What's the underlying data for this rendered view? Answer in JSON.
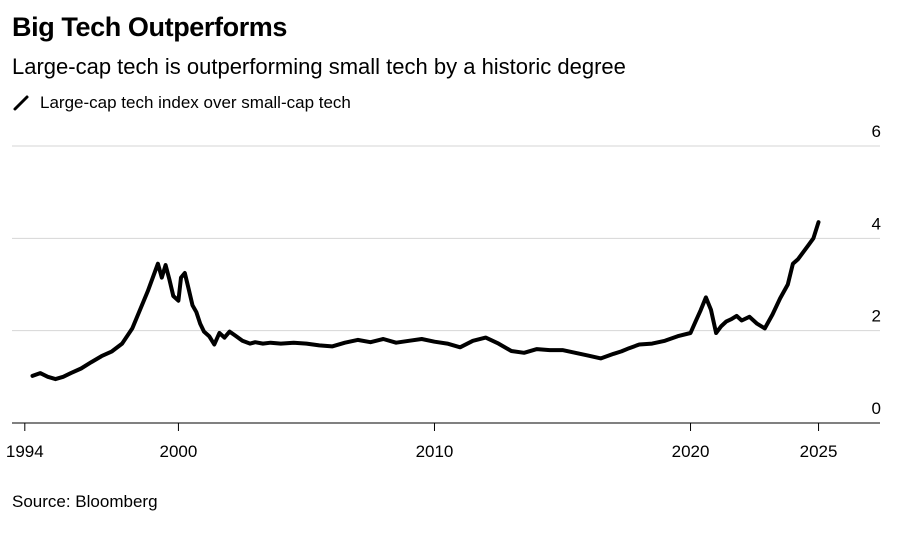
{
  "title": "Big Tech Outperforms",
  "subtitle": "Large-cap tech is outperforming small tech by a historic degree",
  "source": "Source: Bloomberg",
  "colors": {
    "line": "#000000",
    "grid": "#d6d6d6",
    "axis": "#000000"
  },
  "chart_data": {
    "type": "line",
    "title": "Big Tech Outperforms",
    "subtitle": "Large-cap tech is outperforming small tech by a historic degree",
    "xlabel": "",
    "ylabel": "",
    "xlim": [
      1993.5,
      2027.4
    ],
    "ylim": [
      0,
      6
    ],
    "grid": true,
    "legend_position": "top-left",
    "x_ticks": [
      1994,
      2000,
      2010,
      2020,
      2025
    ],
    "x_tick_labels": [
      "1994",
      "2000",
      "2010",
      "2020",
      "2025"
    ],
    "y_ticks": [
      0,
      2,
      4,
      6
    ],
    "y_tick_labels": [
      "0",
      "2",
      "4",
      "6"
    ],
    "series": [
      {
        "name": "Large-cap tech index over small-cap tech",
        "x": [
          1994.3,
          1994.6,
          1994.9,
          1995.2,
          1995.5,
          1995.8,
          1996.2,
          1996.6,
          1997.0,
          1997.4,
          1997.8,
          1998.2,
          1998.5,
          1998.8,
          1999.0,
          1999.2,
          1999.35,
          1999.5,
          1999.65,
          1999.8,
          2000.0,
          2000.1,
          2000.25,
          2000.4,
          2000.55,
          2000.7,
          2000.85,
          2001.0,
          2001.2,
          2001.4,
          2001.6,
          2001.8,
          2002.0,
          2002.2,
          2002.5,
          2002.8,
          2003.0,
          2003.3,
          2003.6,
          2004.0,
          2004.5,
          2005.0,
          2005.5,
          2006.0,
          2006.5,
          2007.0,
          2007.5,
          2008.0,
          2008.5,
          2009.0,
          2009.5,
          2010.0,
          2010.5,
          2011.0,
          2011.5,
          2012.0,
          2012.5,
          2013.0,
          2013.5,
          2014.0,
          2014.5,
          2015.0,
          2015.5,
          2016.0,
          2016.5,
          2017.0,
          2017.3,
          2017.6,
          2018.0,
          2018.5,
          2019.0,
          2019.5,
          2020.0,
          2020.2,
          2020.4,
          2020.6,
          2020.8,
          2021.0,
          2021.2,
          2021.4,
          2021.6,
          2021.8,
          2022.0,
          2022.3,
          2022.6,
          2022.9,
          2023.2,
          2023.5,
          2023.8,
          2024.0,
          2024.2,
          2024.4,
          2024.6,
          2024.8,
          2025.0
        ],
        "values": [
          1.02,
          1.08,
          1.0,
          0.95,
          1.0,
          1.08,
          1.18,
          1.32,
          1.45,
          1.55,
          1.72,
          2.05,
          2.45,
          2.85,
          3.15,
          3.45,
          3.15,
          3.42,
          3.1,
          2.75,
          2.65,
          3.15,
          3.25,
          2.9,
          2.55,
          2.4,
          2.15,
          1.98,
          1.88,
          1.7,
          1.95,
          1.85,
          1.98,
          1.9,
          1.78,
          1.72,
          1.75,
          1.72,
          1.74,
          1.72,
          1.74,
          1.72,
          1.68,
          1.66,
          1.74,
          1.8,
          1.75,
          1.82,
          1.74,
          1.78,
          1.82,
          1.76,
          1.72,
          1.64,
          1.78,
          1.85,
          1.72,
          1.56,
          1.52,
          1.6,
          1.58,
          1.58,
          1.52,
          1.46,
          1.4,
          1.5,
          1.55,
          1.62,
          1.7,
          1.72,
          1.78,
          1.88,
          1.95,
          2.2,
          2.45,
          2.72,
          2.45,
          1.95,
          2.1,
          2.2,
          2.25,
          2.32,
          2.22,
          2.3,
          2.15,
          2.05,
          2.35,
          2.7,
          3.0,
          3.45,
          3.55,
          3.7,
          3.85,
          4.0,
          4.35
        ]
      }
    ]
  }
}
